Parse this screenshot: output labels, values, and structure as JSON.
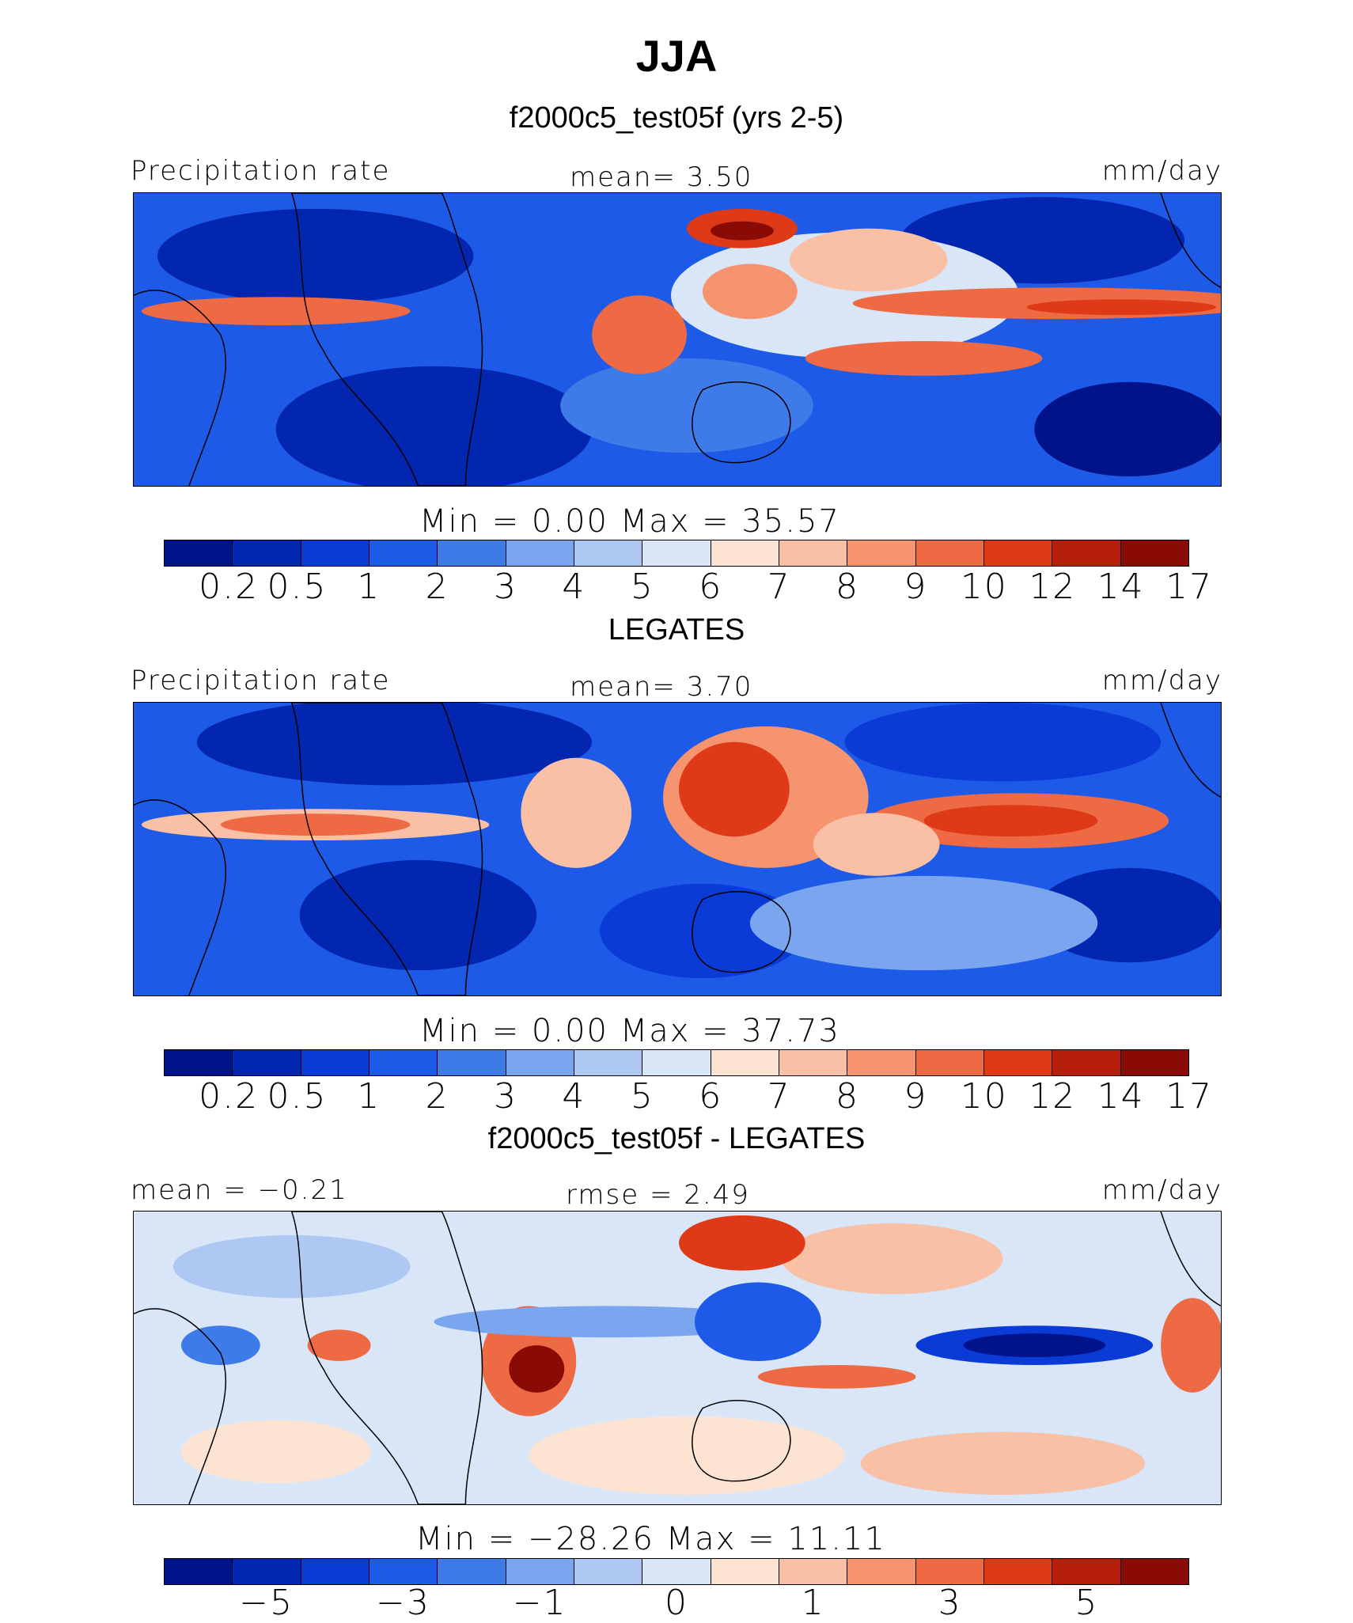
{
  "title": "JJA",
  "panels": [
    {
      "subtitle": "f2000c5_test05f (yrs 2-5)",
      "left_label": "Precipitation rate",
      "center_label": "mean=    3.50",
      "right_label": "mm/day",
      "minmax": "Min  =    0.00  Max  =   35.57",
      "colorbar_labels": [
        "0.2",
        "0.5",
        "1",
        "2",
        "3",
        "4",
        "5",
        "6",
        "7",
        "8",
        "9",
        "10",
        "12",
        "14",
        "17"
      ]
    },
    {
      "subtitle": "LEGATES",
      "left_label": "Precipitation rate",
      "center_label": "mean=    3.70",
      "right_label": "mm/day",
      "minmax": "Min  =    0.00  Max  =   37.73",
      "colorbar_labels": [
        "0.2",
        "0.5",
        "1",
        "2",
        "3",
        "4",
        "5",
        "6",
        "7",
        "8",
        "9",
        "10",
        "12",
        "14",
        "17"
      ]
    },
    {
      "subtitle": "f2000c5_test05f - LEGATES",
      "left_label": "mean  =   −0.21",
      "center_label": "rmse  =    2.49",
      "right_label": "mm/day",
      "minmax": "Min  = −28.26  Max  =   11.11",
      "colorbar_labels": [
        "−5",
        "−3",
        "−1",
        "0",
        "1",
        "3",
        "5"
      ]
    }
  ],
  "chart_data": [
    {
      "type": "heatmap",
      "title": "f2000c5_test05f (yrs 2-5)",
      "variable": "Precipitation rate",
      "units": "mm/day",
      "mean": 3.5,
      "min": 0.0,
      "max": 35.57,
      "levels": [
        0.2,
        0.5,
        1,
        2,
        3,
        4,
        5,
        6,
        7,
        8,
        9,
        10,
        12,
        14,
        17
      ],
      "colors": [
        "#00138a",
        "#0326b0",
        "#0a3bd6",
        "#1e5ae8",
        "#3f7be8",
        "#7aa6f0",
        "#aec8f4",
        "#d8e6f8",
        "#fde4d2",
        "#f9c0a6",
        "#f5946f",
        "#ee6a44",
        "#de3a17",
        "#b81e0c",
        "#8a0a05"
      ]
    },
    {
      "type": "heatmap",
      "title": "LEGATES",
      "variable": "Precipitation rate",
      "units": "mm/day",
      "mean": 3.7,
      "min": 0.0,
      "max": 37.73,
      "levels": [
        0.2,
        0.5,
        1,
        2,
        3,
        4,
        5,
        6,
        7,
        8,
        9,
        10,
        12,
        14,
        17
      ],
      "colors": [
        "#00138a",
        "#0326b0",
        "#0a3bd6",
        "#1e5ae8",
        "#3f7be8",
        "#7aa6f0",
        "#aec8f4",
        "#d8e6f8",
        "#fde4d2",
        "#f9c0a6",
        "#f5946f",
        "#ee6a44",
        "#de3a17",
        "#b81e0c",
        "#8a0a05"
      ]
    },
    {
      "type": "heatmap",
      "title": "f2000c5_test05f - LEGATES",
      "units": "mm/day",
      "mean": -0.21,
      "rmse": 2.49,
      "min": -28.26,
      "max": 11.11,
      "levels": [
        -6,
        -5,
        -4,
        -3,
        -2,
        -1,
        0,
        0.5,
        1,
        2,
        3,
        4,
        5,
        6
      ],
      "colors": [
        "#00138a",
        "#0326b0",
        "#0a3bd6",
        "#1e5ae8",
        "#3f7be8",
        "#7aa6f0",
        "#aec8f4",
        "#d8e6f8",
        "#fde4d2",
        "#f9c0a6",
        "#f5946f",
        "#ee6a44",
        "#de3a17",
        "#b81e0c",
        "#8a0a05"
      ]
    }
  ]
}
